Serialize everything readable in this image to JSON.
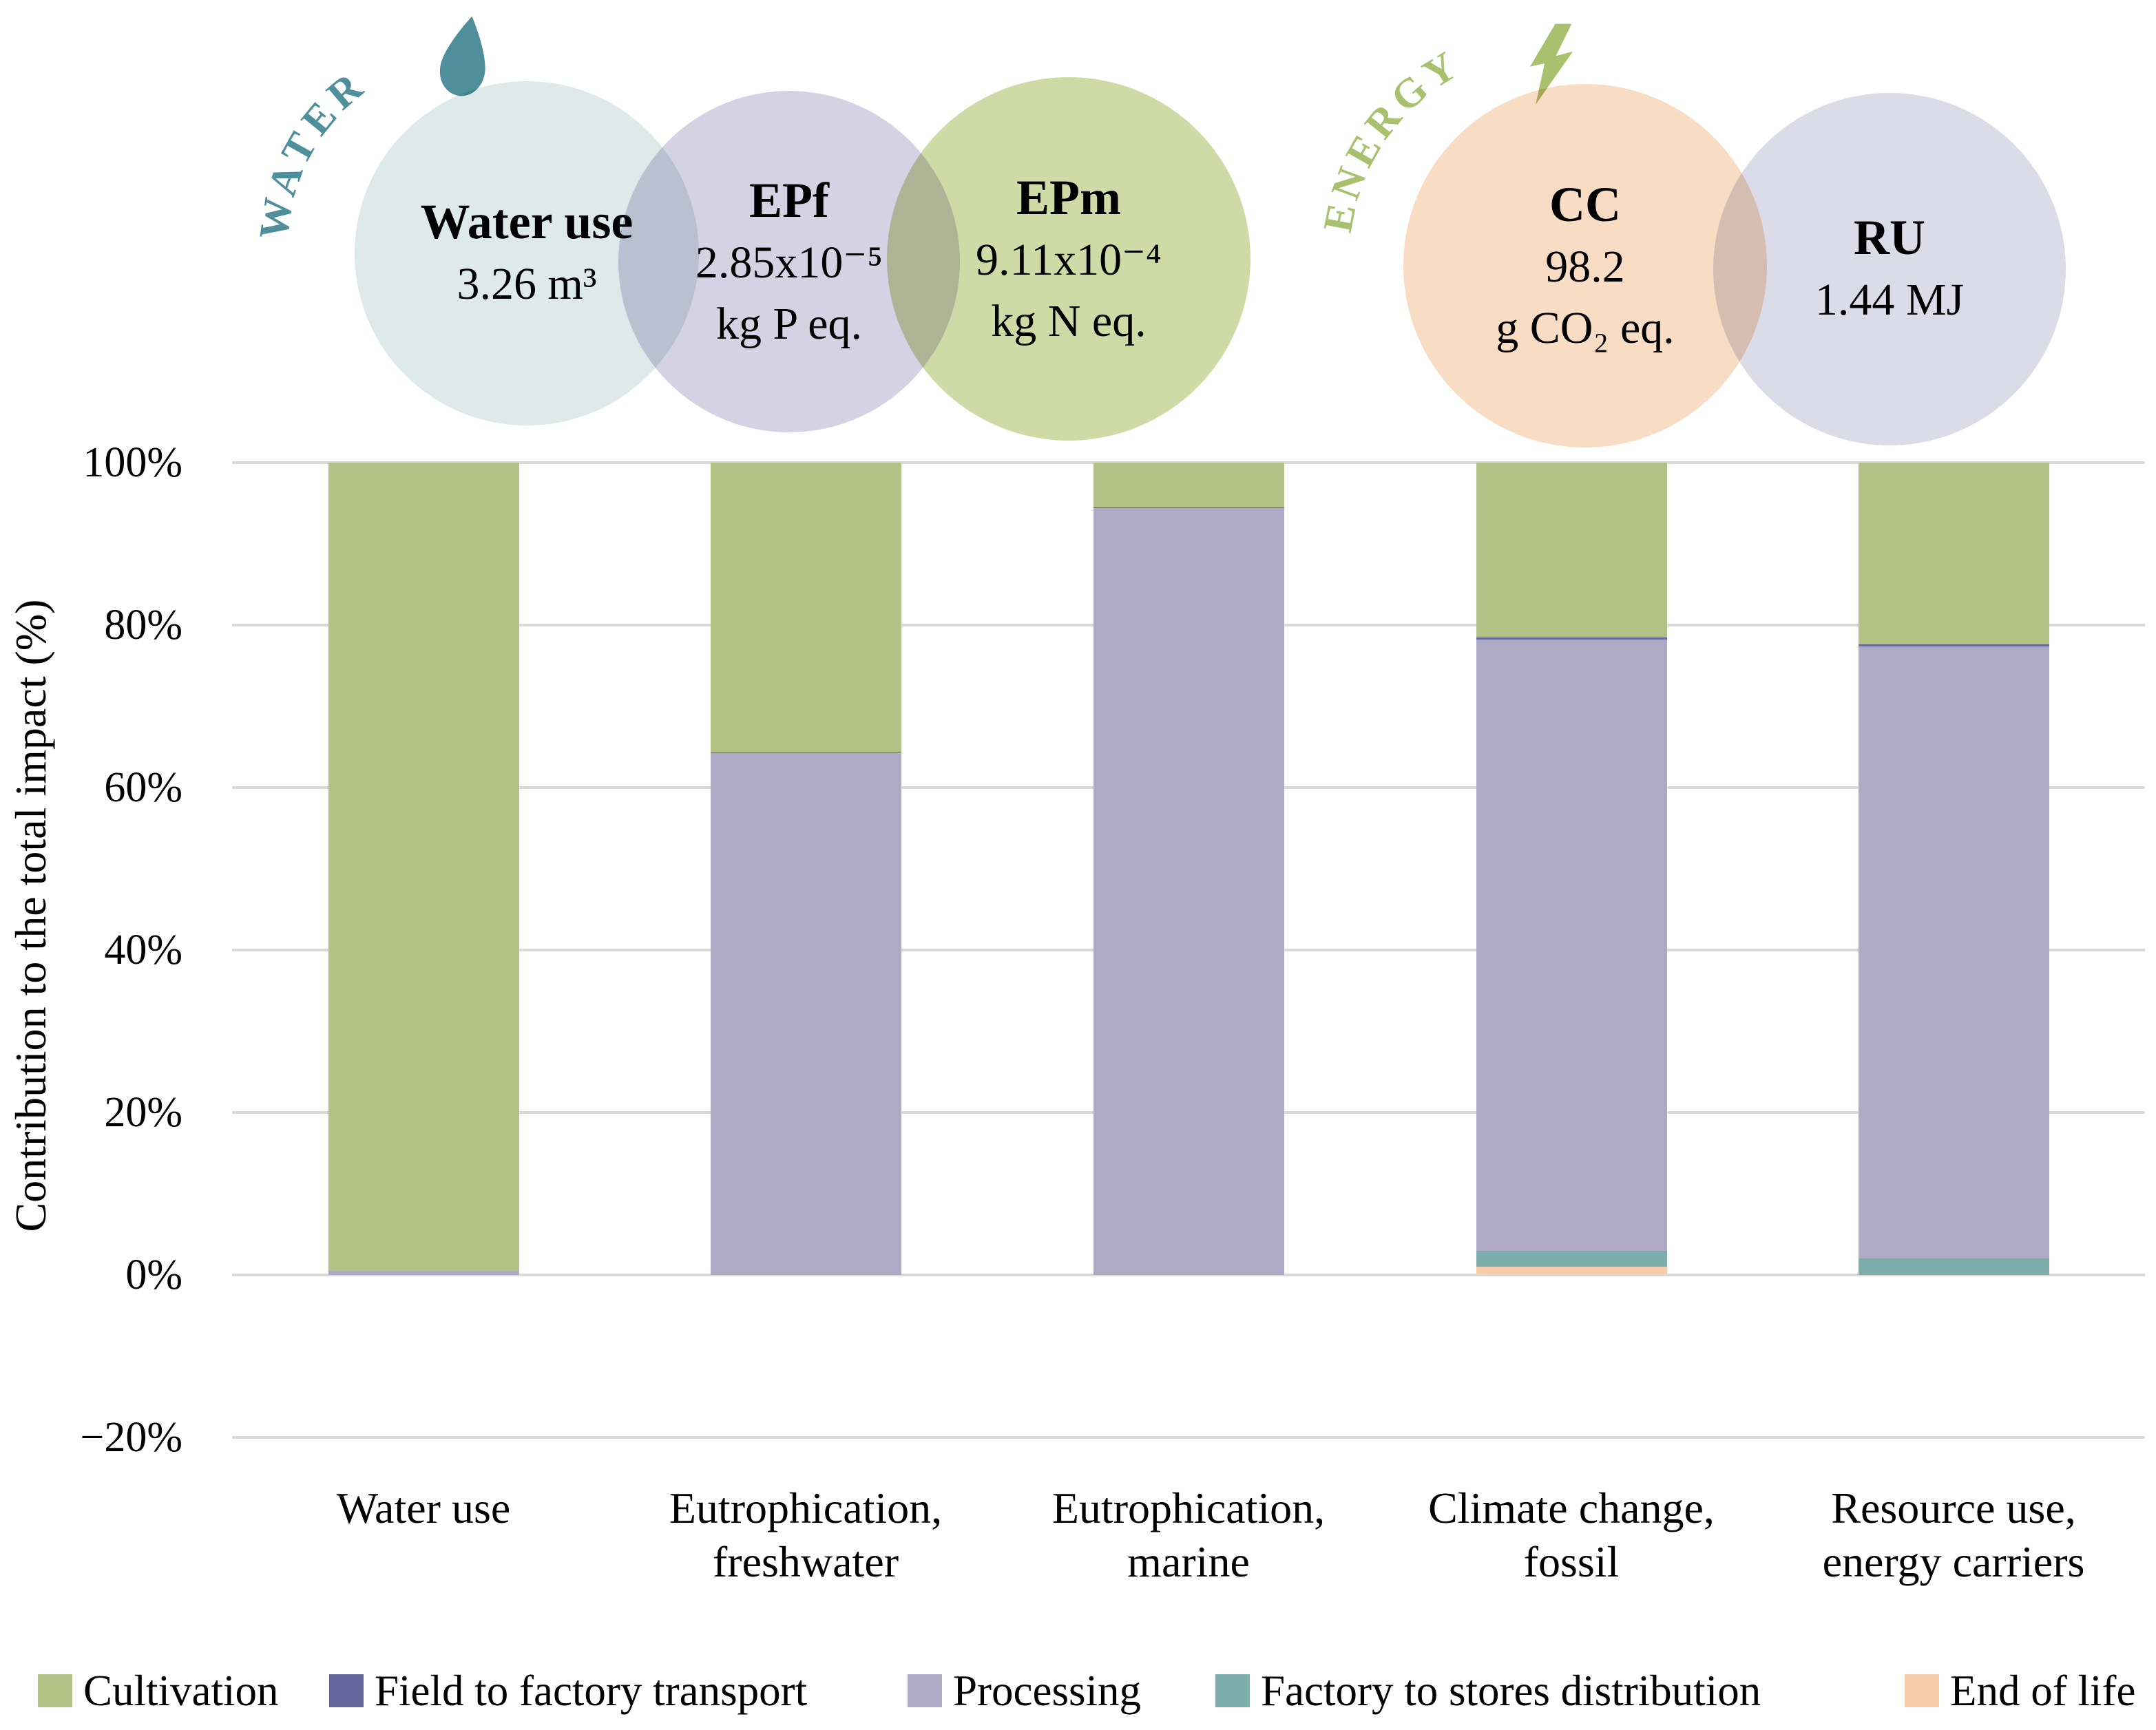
{
  "venn": {
    "water_group_label": "WATER",
    "energy_group_label": "ENERGY",
    "water_accent_color": "#4e8f9b",
    "energy_accent_color": "#a9c16e",
    "circles": [
      {
        "id": "water-use",
        "title": "Water use",
        "value": "3.26 m³",
        "unit": "",
        "color": "#dee9ea"
      },
      {
        "id": "epf",
        "title": "EPf",
        "value": "2.85x10⁻⁵",
        "unit": "kg P eq.",
        "color": "#d5d2e3"
      },
      {
        "id": "epm",
        "title": "EPm",
        "value": "9.11x10⁻⁴",
        "unit": "kg N eq.",
        "color": "#cfdaa6"
      },
      {
        "id": "cc",
        "title": "CC",
        "value": "98.2",
        "unit": "g CO₂ eq.",
        "color": "#f8dcc3"
      },
      {
        "id": "ru",
        "title": "RU",
        "value": "1.44 MJ",
        "unit": "",
        "color": "#dcdbe8"
      }
    ]
  },
  "chart_data": {
    "type": "bar",
    "stacked": true,
    "title": "",
    "xlabel": "",
    "ylabel": "Contribution to the total impact (%)",
    "ylim": [
      -20,
      100
    ],
    "grid": true,
    "gridline_color": "#d9d9d9",
    "legend_position": "bottom",
    "yticks": [
      {
        "value": 100,
        "label": "100%"
      },
      {
        "value": 80,
        "label": "80%"
      },
      {
        "value": 60,
        "label": "60%"
      },
      {
        "value": 40,
        "label": "40%"
      },
      {
        "value": 20,
        "label": "20%"
      },
      {
        "value": 0,
        "label": "0%"
      },
      {
        "value": -20,
        "label": "−20%"
      }
    ],
    "categories": [
      "Water use",
      "Eutrophication,\nfreshwater",
      "Eutrophication,\nmarine",
      "Climate change,\nfossil",
      "Resource use,\nenergy carriers"
    ],
    "series": [
      {
        "name": "Cultivation",
        "color": "#b2c186",
        "values": [
          99.5,
          35.7,
          5.5,
          21.5,
          22.4
        ]
      },
      {
        "name": "Field to factory transport",
        "color": "#63679e",
        "values": [
          0,
          0.1,
          0.1,
          0.3,
          0.2
        ]
      },
      {
        "name": "Processing",
        "color": "#aeaac5",
        "values": [
          0.5,
          64.2,
          94.4,
          75.2,
          75.4
        ]
      },
      {
        "name": "Factory to stores distribution",
        "color": "#7cadab",
        "values": [
          0,
          0,
          0,
          2.0,
          2.0
        ]
      },
      {
        "name": "End of life",
        "color": "#f6ccab",
        "values": [
          0,
          0,
          0,
          1.0,
          0
        ]
      }
    ],
    "stack_order_bottom_to_top": [
      "End of life",
      "Factory to stores distribution",
      "Processing",
      "Field to factory transport",
      "Cultivation"
    ]
  }
}
